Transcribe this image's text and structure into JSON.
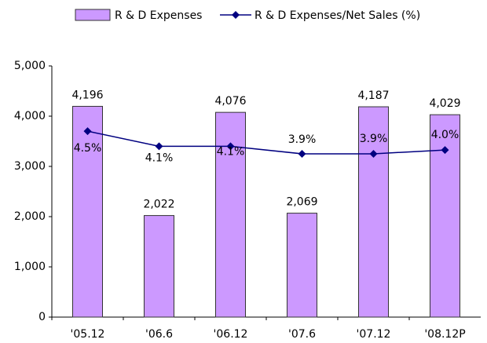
{
  "chart_data": {
    "type": "bar",
    "categories": [
      "'05.12",
      "'06.6",
      "'06.12",
      "'07.6",
      "'07.12",
      "'08.12P"
    ],
    "series": [
      {
        "name": "R & D Expenses",
        "type": "bar",
        "color": "#cc99ff",
        "values": [
          4196,
          2022,
          4076,
          2069,
          4187,
          4029
        ],
        "value_labels": [
          "4,196",
          "2,022",
          "4,076",
          "2,069",
          "4,187",
          "4,029"
        ]
      },
      {
        "name": "R & D Expenses/Net Sales (%)",
        "type": "line",
        "axis": "y2",
        "color": "#000080",
        "values": [
          4.5,
          4.1,
          4.1,
          3.9,
          3.9,
          4.0
        ],
        "value_labels": [
          "4.5%",
          "4.1%",
          "4.1%",
          "3.9%",
          "3.9%",
          "4.0%"
        ]
      }
    ],
    "ylim": [
      0,
      5000
    ],
    "yticks": [
      0,
      {
        "value": 1000,
        "label": "1,000"
      },
      {
        "value": 2000,
        "label": "2,000"
      },
      {
        "value": 3000,
        "label": "3,000"
      },
      {
        "value": 4000,
        "label": "4,000"
      },
      {
        "value": 5000,
        "label": "5,000"
      }
    ],
    "y2lim": [
      -0.43,
      6.23
    ],
    "legend": "top"
  }
}
